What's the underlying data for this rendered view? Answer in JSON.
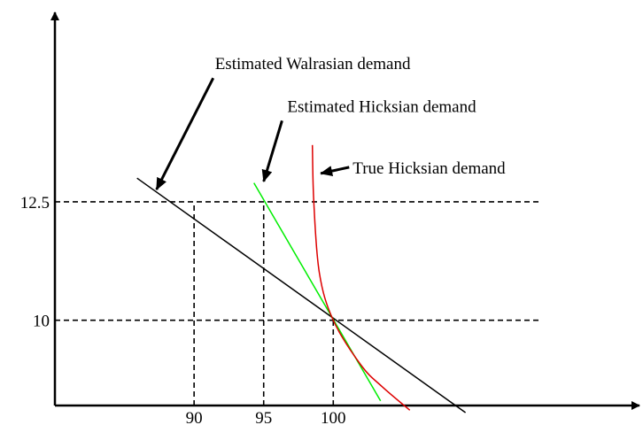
{
  "chart_data": {
    "type": "line",
    "title": "",
    "xlabel": "",
    "ylabel": "",
    "xlim": [
      80,
      122
    ],
    "ylim": [
      8.2,
      16.5
    ],
    "x_ticks": [
      {
        "value": 90,
        "label": "90"
      },
      {
        "value": 95,
        "label": "95"
      },
      {
        "value": 100,
        "label": "100"
      }
    ],
    "y_ticks": [
      {
        "value": 12.5,
        "label": "12.5"
      },
      {
        "value": 10,
        "label": "10"
      }
    ],
    "reference_lines": [
      {
        "axis": "y",
        "value": 12.5,
        "style": "dashed"
      },
      {
        "axis": "y",
        "value": 10,
        "style": "dashed"
      },
      {
        "axis": "x",
        "value": 90,
        "from": 8.2,
        "to": 12.5,
        "style": "dashed"
      },
      {
        "axis": "x",
        "value": 95,
        "from": 8.2,
        "to": 12.5,
        "style": "dashed"
      },
      {
        "axis": "x",
        "value": 100,
        "from": 8.2,
        "to": 10,
        "style": "dashed"
      }
    ],
    "series": [
      {
        "key": "walrasian",
        "color": "#000000",
        "points": [
          [
            85.9,
            13.0
          ],
          [
            109.5,
            8.05
          ]
        ]
      },
      {
        "key": "est_hicksian",
        "color": "#00ee00",
        "points": [
          [
            94.3,
            12.9
          ],
          [
            103.4,
            8.3
          ]
        ]
      },
      {
        "key": "true_hicksian",
        "color": "#dd0000",
        "points": [
          [
            98.5,
            13.7
          ],
          [
            98.6,
            12.5
          ],
          [
            99.0,
            11.0
          ],
          [
            100.0,
            10.0
          ],
          [
            102.0,
            9.05
          ],
          [
            103.5,
            8.6
          ],
          [
            105.5,
            8.1
          ]
        ]
      }
    ],
    "annotations": [
      {
        "key": "walrasian",
        "text": "Estimated Walrasian demand",
        "x": 91.5,
        "y": 15.3,
        "arrow_to": [
          87.3,
          12.76
        ]
      },
      {
        "key": "est_hicksian",
        "text": "Estimated Hicksian demand",
        "x": 96.7,
        "y": 14.4,
        "arrow_to": [
          95.0,
          12.93
        ]
      },
      {
        "key": "true_hicksian",
        "text": "True Hicksian demand",
        "x": 101.4,
        "y": 13.1,
        "arrow_to": [
          99.1,
          13.1
        ]
      }
    ],
    "grid": false,
    "legend": "none"
  }
}
